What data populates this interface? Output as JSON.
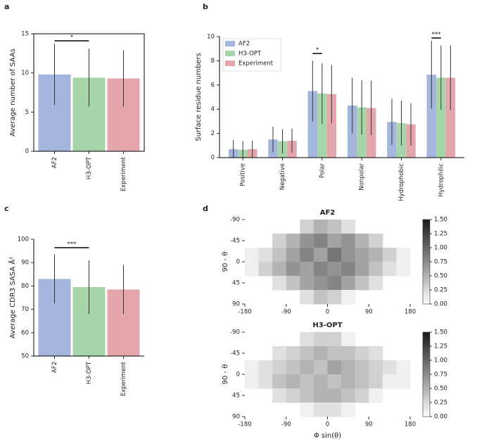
{
  "chart_data": [
    {
      "type": "bar",
      "label": "a",
      "ylabel": "Average number of SAAs",
      "categories": [
        "AF2",
        "H3-OPT",
        "Experiment"
      ],
      "values": [
        9.8,
        9.4,
        9.3
      ],
      "errors": [
        3.9,
        3.7,
        3.6
      ],
      "colors": [
        "#a4b6dd",
        "#a5d5a9",
        "#e4a6ab"
      ],
      "ylim": [
        0,
        15
      ],
      "yticks": [
        0,
        5,
        10,
        15
      ],
      "frame": true,
      "significance": [
        {
          "label": "*",
          "between": [
            "AF2",
            "H3-OPT"
          ]
        }
      ]
    },
    {
      "type": "bar",
      "label": "b",
      "ylabel": "Surface residue numbers",
      "categories": [
        "Positive",
        "Negative",
        "Polar",
        "Nonpolar",
        "Hydrophobic",
        "Hydrophilic"
      ],
      "series": [
        {
          "name": "AF2",
          "color": "#a4b6dd",
          "values": [
            0.7,
            1.5,
            5.5,
            4.3,
            2.95,
            6.85
          ],
          "errors": [
            0.75,
            1.05,
            2.5,
            2.3,
            1.9,
            2.8
          ]
        },
        {
          "name": "H3-OPT",
          "color": "#a5d5a9",
          "values": [
            0.65,
            1.35,
            5.3,
            4.15,
            2.85,
            6.6
          ],
          "errors": [
            0.7,
            1.0,
            2.5,
            2.25,
            1.85,
            2.65
          ]
        },
        {
          "name": "Experiment",
          "color": "#e4a6ab",
          "values": [
            0.7,
            1.4,
            5.25,
            4.1,
            2.75,
            6.6
          ],
          "errors": [
            0.7,
            1.0,
            2.4,
            2.25,
            1.75,
            2.65
          ]
        }
      ],
      "ylim": [
        0,
        10
      ],
      "yticks": [
        0,
        2,
        4,
        6,
        8,
        10
      ],
      "frame": false,
      "legend": "upper left",
      "significance": [
        {
          "label": "*",
          "category": "Polar",
          "between": [
            "AF2",
            "H3-OPT"
          ]
        },
        {
          "label": "***",
          "category": "Hydrophilic",
          "between": [
            "AF2",
            "H3-OPT"
          ]
        }
      ]
    },
    {
      "type": "bar",
      "label": "c",
      "ylabel": "Average CDR3 SASA Å²",
      "categories": [
        "AF2",
        "H3-OPT",
        "Experiment"
      ],
      "values": [
        83,
        79.5,
        78.5
      ],
      "errors": [
        10.5,
        11.5,
        10.5
      ],
      "colors": [
        "#a4b6dd",
        "#a5d5a9",
        "#e4a6ab"
      ],
      "ylim": [
        50,
        100
      ],
      "yticks": [
        50,
        60,
        70,
        80,
        90,
        100
      ],
      "frame": false,
      "significance": [
        {
          "label": "***",
          "between": [
            "AF2",
            "H3-OPT"
          ]
        }
      ]
    },
    {
      "type": "heatmap",
      "label": "d",
      "title": "AF2",
      "ylabel": "90 - θ",
      "xlim": [
        -180,
        180
      ],
      "xticks": [
        -180,
        -90,
        0,
        90,
        180
      ],
      "ylim": [
        -90,
        90
      ],
      "yticks": [
        -90,
        -45,
        0,
        45,
        90
      ],
      "invert_y": true,
      "xbins": [
        -180,
        -150,
        -120,
        -90,
        -60,
        -30,
        0,
        30,
        60,
        90,
        120,
        150,
        180
      ],
      "ybins": [
        -90,
        -60,
        -30,
        0,
        30,
        60,
        90
      ],
      "z": [
        [
          null,
          null,
          null,
          null,
          0.3,
          0.5,
          0.4,
          0.2,
          null,
          null,
          null,
          null
        ],
        [
          null,
          null,
          0.3,
          0.5,
          0.7,
          0.8,
          0.6,
          0.7,
          0.5,
          0.3,
          null,
          null
        ],
        [
          0.1,
          0.2,
          0.4,
          0.6,
          0.8,
          0.6,
          0.9,
          0.7,
          0.6,
          0.5,
          0.3,
          0.1
        ],
        [
          0.1,
          0.3,
          0.5,
          0.7,
          0.6,
          0.8,
          0.7,
          0.8,
          0.6,
          0.4,
          0.2,
          0.1
        ],
        [
          null,
          null,
          0.2,
          0.4,
          0.6,
          0.7,
          0.8,
          0.6,
          0.4,
          0.2,
          null,
          null
        ],
        [
          null,
          null,
          null,
          null,
          0.2,
          0.4,
          0.3,
          0.1,
          null,
          null,
          null,
          null
        ]
      ],
      "clim": [
        0,
        1.5
      ],
      "cticks": [
        {
          "value": 0,
          "label": "0.00"
        },
        {
          "value": 0.25,
          "label": "0.25"
        },
        {
          "value": 0.5,
          "label": "0.50"
        },
        {
          "value": 0.75,
          "label": "0.75"
        },
        {
          "value": 1,
          "label": "1.00"
        },
        {
          "value": 1.25,
          "label": "1.25"
        },
        {
          "value": 1.5,
          "label": "1.50"
        }
      ]
    },
    {
      "type": "heatmap",
      "title": "H3-OPT",
      "ylabel": "90 - θ",
      "xlabel": "Φ sin(θ)",
      "xlim": [
        -180,
        180
      ],
      "xticks": [
        -180,
        -90,
        0,
        90,
        180
      ],
      "ylim": [
        -90,
        90
      ],
      "yticks": [
        -90,
        -45,
        0,
        45,
        90
      ],
      "invert_y": true,
      "xbins": [
        -180,
        -150,
        -120,
        -90,
        -60,
        -30,
        0,
        30,
        60,
        90,
        120,
        150,
        180
      ],
      "ybins": [
        -90,
        -60,
        -30,
        0,
        30,
        60,
        90
      ],
      "z": [
        [
          null,
          null,
          null,
          null,
          0.2,
          0.3,
          0.3,
          0.1,
          null,
          null,
          null,
          null
        ],
        [
          null,
          null,
          0.2,
          0.3,
          0.4,
          0.5,
          0.4,
          0.4,
          0.3,
          0.2,
          null,
          null
        ],
        [
          0.1,
          0.2,
          0.3,
          0.4,
          0.5,
          0.4,
          0.6,
          0.5,
          0.4,
          0.3,
          0.2,
          0.1
        ],
        [
          0.1,
          0.2,
          0.4,
          0.5,
          0.4,
          0.5,
          0.4,
          0.5,
          0.4,
          0.3,
          0.1,
          0.1
        ],
        [
          null,
          null,
          0.2,
          0.3,
          0.4,
          0.5,
          0.5,
          0.4,
          0.3,
          0.1,
          null,
          null
        ],
        [
          null,
          null,
          null,
          null,
          0.1,
          0.2,
          0.2,
          0.1,
          null,
          null,
          null,
          null
        ]
      ],
      "clim": [
        0,
        1.5
      ],
      "cticks": [
        {
          "value": 0,
          "label": "0.00"
        },
        {
          "value": 0.25,
          "label": "0.25"
        },
        {
          "value": 0.5,
          "label": "0.50"
        },
        {
          "value": 0.75,
          "label": "0.75"
        },
        {
          "value": 1,
          "label": "1.00"
        },
        {
          "value": 1.25,
          "label": "1.25"
        },
        {
          "value": 1.5,
          "label": "1.50"
        }
      ]
    }
  ]
}
